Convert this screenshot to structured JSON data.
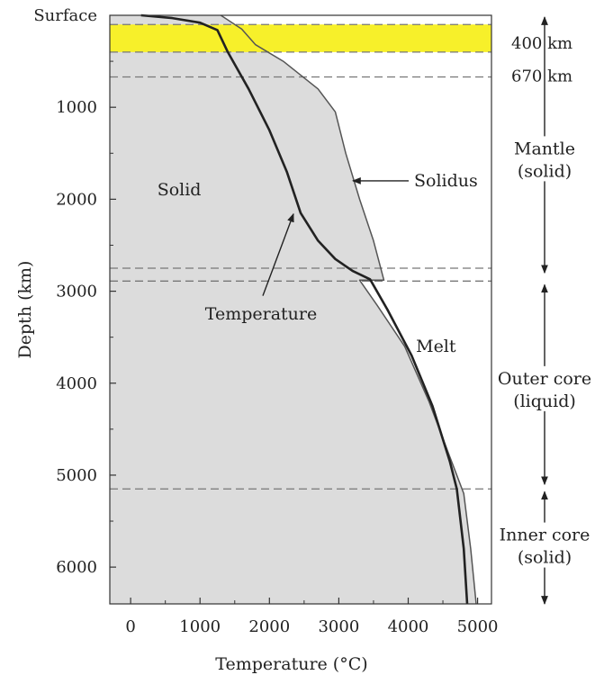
{
  "chart_data": {
    "type": "line",
    "xlabel": "Temperature (°C)",
    "ylabel": "Depth (km)",
    "xlim": [
      -300,
      5200
    ],
    "ylim": [
      0,
      6400
    ],
    "x_ticks": [
      0,
      1000,
      2000,
      3000,
      4000,
      5000
    ],
    "y_ticks": [
      1000,
      2000,
      3000,
      4000,
      5000,
      6000
    ],
    "surface_label": "Surface",
    "grid": false,
    "series": [
      {
        "name": "Temperature",
        "color": "#222222",
        "points": [
          [
            150,
            0
          ],
          [
            600,
            30
          ],
          [
            1000,
            80
          ],
          [
            1250,
            160
          ],
          [
            1400,
            400
          ],
          [
            1700,
            800
          ],
          [
            2000,
            1250
          ],
          [
            2250,
            1700
          ],
          [
            2450,
            2150
          ],
          [
            2700,
            2450
          ],
          [
            2950,
            2650
          ],
          [
            3200,
            2780
          ],
          [
            3450,
            2870
          ],
          [
            3700,
            3200
          ],
          [
            4050,
            3700
          ],
          [
            4350,
            4250
          ],
          [
            4600,
            4850
          ],
          [
            4700,
            5150
          ],
          [
            4800,
            5800
          ],
          [
            4850,
            6400
          ]
        ]
      },
      {
        "name": "Solidus",
        "color": "#555555",
        "points": [
          [
            1300,
            0
          ],
          [
            1600,
            150
          ],
          [
            1800,
            320
          ],
          [
            2200,
            500
          ],
          [
            2700,
            800
          ],
          [
            2950,
            1050
          ],
          [
            3100,
            1500
          ],
          [
            3300,
            2000
          ],
          [
            3500,
            2450
          ],
          [
            3650,
            2880
          ],
          [
            3300,
            2880
          ],
          [
            3550,
            3150
          ],
          [
            3950,
            3600
          ],
          [
            4300,
            4200
          ],
          [
            4600,
            4800
          ],
          [
            4800,
            5200
          ],
          [
            4900,
            5800
          ],
          [
            4980,
            6400
          ]
        ]
      }
    ],
    "regions": [
      {
        "label": "Solid",
        "fill": "#dcdcdc"
      },
      {
        "label": "Melt",
        "fill": "#ffffff"
      }
    ],
    "highlight_band": {
      "depth_range": [
        100,
        400
      ],
      "color": "#f7f02a"
    },
    "boundaries": [
      {
        "depth": 100,
        "style": "dashed"
      },
      {
        "depth": 400,
        "label": "400 km",
        "style": "dashed"
      },
      {
        "depth": 670,
        "label": "670 km",
        "style": "dashed"
      },
      {
        "depth": 2750,
        "style": "dashed"
      },
      {
        "depth": 2890,
        "style": "dashed"
      },
      {
        "depth": 5150,
        "style": "dashed"
      }
    ],
    "layers": [
      {
        "line1": "Mantle",
        "line2": "(solid)",
        "depth_range": [
          0,
          2800
        ]
      },
      {
        "line1": "Outer core",
        "line2": "(liquid)",
        "depth_range": [
          2890,
          5150
        ]
      },
      {
        "line1": "Inner core",
        "line2": "(solid)",
        "depth_range": [
          5150,
          6400
        ]
      }
    ],
    "annotations": [
      {
        "text": "Solid"
      },
      {
        "text": "Solidus",
        "points_to": "Solidus",
        "depth": 1800
      },
      {
        "text": "Temperature",
        "points_to": "Temperature",
        "depth": 2150
      },
      {
        "text": "Melt"
      }
    ]
  }
}
